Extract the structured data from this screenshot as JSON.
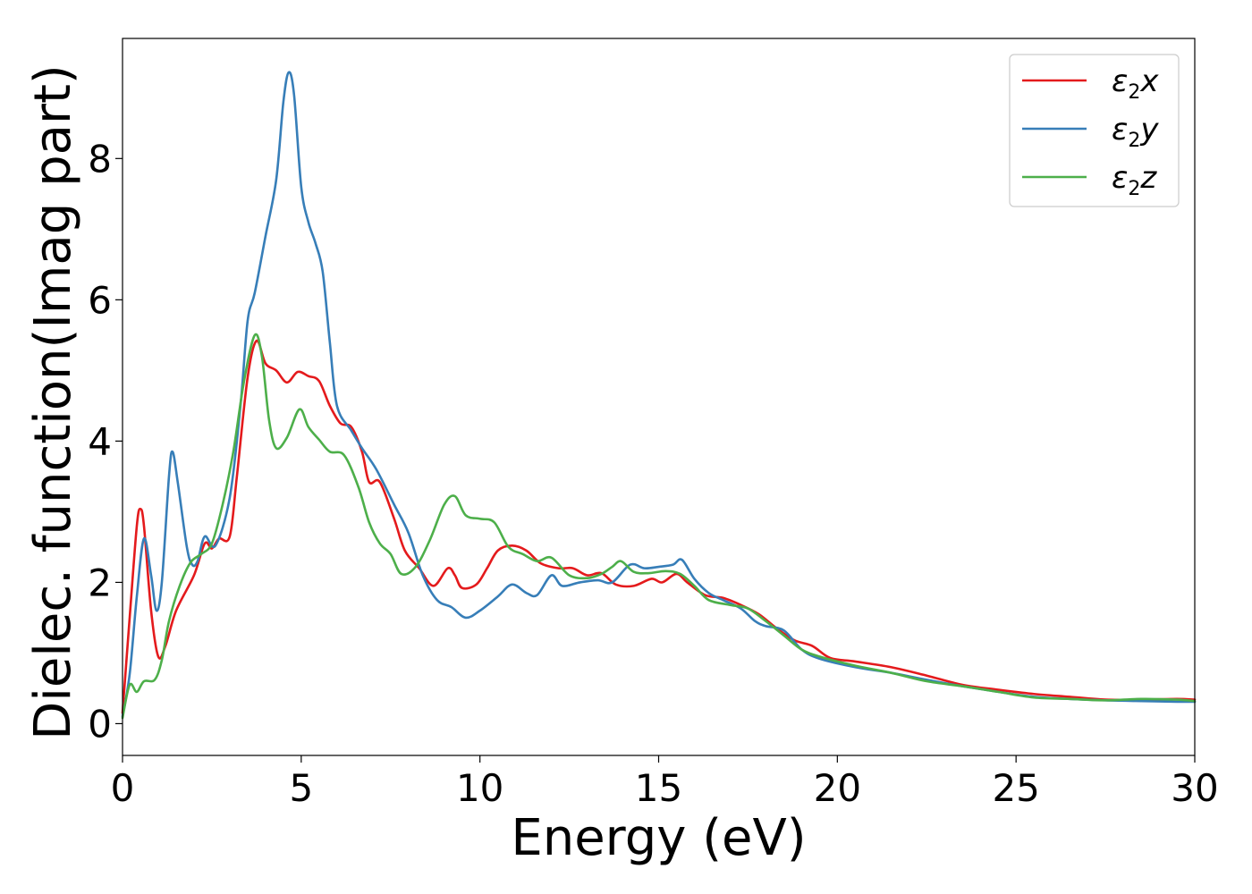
{
  "chart_data": {
    "type": "line",
    "xlabel": "Energy (eV)",
    "ylabel": "Dielec. function(Imag part)",
    "xlim": [
      0,
      30
    ],
    "ylim": [
      -0.45,
      9.7
    ],
    "x_ticks": [
      0,
      5,
      10,
      15,
      20,
      25,
      30
    ],
    "x_tick_labels": [
      "0",
      "5",
      "10",
      "15",
      "20",
      "25",
      "30"
    ],
    "y_ticks": [
      0,
      2,
      4,
      6,
      8
    ],
    "y_tick_labels": [
      "0",
      "2",
      "4",
      "6",
      "8"
    ],
    "grid": false,
    "legend_placement": "top-right",
    "series": [
      {
        "name": "ε2x",
        "legend": {
          "base": "ε",
          "sub": "2",
          "axis": "x"
        },
        "color": "#e41a1c",
        "points": [
          [
            0,
            0.15
          ],
          [
            0.2,
            1.5
          ],
          [
            0.4,
            2.8
          ],
          [
            0.5,
            3.04
          ],
          [
            0.6,
            2.8
          ],
          [
            0.8,
            1.6
          ],
          [
            1.0,
            0.95
          ],
          [
            1.2,
            1.1
          ],
          [
            1.5,
            1.6
          ],
          [
            2.0,
            2.1
          ],
          [
            2.3,
            2.55
          ],
          [
            2.5,
            2.48
          ],
          [
            2.7,
            2.62
          ],
          [
            3.0,
            2.65
          ],
          [
            3.2,
            3.5
          ],
          [
            3.5,
            4.9
          ],
          [
            3.75,
            5.42
          ],
          [
            4.0,
            5.1
          ],
          [
            4.3,
            5.0
          ],
          [
            4.6,
            4.83
          ],
          [
            4.9,
            4.98
          ],
          [
            5.2,
            4.92
          ],
          [
            5.5,
            4.85
          ],
          [
            5.8,
            4.5
          ],
          [
            6.1,
            4.25
          ],
          [
            6.4,
            4.2
          ],
          [
            6.7,
            3.85
          ],
          [
            6.9,
            3.42
          ],
          [
            7.2,
            3.42
          ],
          [
            7.6,
            2.9
          ],
          [
            7.9,
            2.45
          ],
          [
            8.3,
            2.2
          ],
          [
            8.7,
            1.95
          ],
          [
            9.1,
            2.2
          ],
          [
            9.3,
            2.1
          ],
          [
            9.5,
            1.92
          ],
          [
            9.9,
            1.97
          ],
          [
            10.2,
            2.2
          ],
          [
            10.5,
            2.45
          ],
          [
            10.9,
            2.52
          ],
          [
            11.3,
            2.45
          ],
          [
            11.7,
            2.27
          ],
          [
            12.2,
            2.2
          ],
          [
            12.6,
            2.2
          ],
          [
            13.0,
            2.1
          ],
          [
            13.4,
            2.13
          ],
          [
            13.8,
            1.97
          ],
          [
            14.3,
            1.95
          ],
          [
            14.8,
            2.05
          ],
          [
            15.1,
            2.0
          ],
          [
            15.5,
            2.12
          ],
          [
            15.8,
            2.0
          ],
          [
            16.3,
            1.82
          ],
          [
            16.8,
            1.78
          ],
          [
            17.3,
            1.68
          ],
          [
            17.8,
            1.55
          ],
          [
            18.3,
            1.35
          ],
          [
            18.8,
            1.18
          ],
          [
            19.3,
            1.1
          ],
          [
            19.8,
            0.93
          ],
          [
            20.5,
            0.88
          ],
          [
            21.5,
            0.8
          ],
          [
            22.5,
            0.68
          ],
          [
            23.5,
            0.55
          ],
          [
            24.5,
            0.48
          ],
          [
            25.5,
            0.42
          ],
          [
            26.5,
            0.38
          ],
          [
            27.5,
            0.34
          ],
          [
            28.5,
            0.34
          ],
          [
            29.5,
            0.35
          ],
          [
            30,
            0.34
          ]
        ]
      },
      {
        "name": "ε2y",
        "legend": {
          "base": "ε",
          "sub": "2",
          "axis": "y"
        },
        "color": "#377eb8",
        "points": [
          [
            0,
            0.1
          ],
          [
            0.2,
            0.7
          ],
          [
            0.4,
            1.8
          ],
          [
            0.6,
            2.62
          ],
          [
            0.8,
            2.1
          ],
          [
            0.95,
            1.6
          ],
          [
            1.1,
            2.0
          ],
          [
            1.3,
            3.5
          ],
          [
            1.4,
            3.85
          ],
          [
            1.55,
            3.4
          ],
          [
            1.8,
            2.5
          ],
          [
            1.95,
            2.25
          ],
          [
            2.1,
            2.3
          ],
          [
            2.3,
            2.65
          ],
          [
            2.6,
            2.52
          ],
          [
            3.0,
            3.2
          ],
          [
            3.3,
            4.5
          ],
          [
            3.5,
            5.7
          ],
          [
            3.7,
            6.1
          ],
          [
            4.0,
            6.9
          ],
          [
            4.3,
            7.7
          ],
          [
            4.5,
            8.8
          ],
          [
            4.65,
            9.22
          ],
          [
            4.8,
            8.9
          ],
          [
            5.0,
            7.6
          ],
          [
            5.2,
            7.1
          ],
          [
            5.4,
            6.8
          ],
          [
            5.6,
            6.4
          ],
          [
            5.8,
            5.4
          ],
          [
            6.0,
            4.5
          ],
          [
            6.4,
            4.15
          ],
          [
            6.7,
            3.9
          ],
          [
            7.1,
            3.6
          ],
          [
            7.6,
            3.1
          ],
          [
            8.0,
            2.7
          ],
          [
            8.4,
            2.1
          ],
          [
            8.8,
            1.75
          ],
          [
            9.2,
            1.65
          ],
          [
            9.6,
            1.5
          ],
          [
            10.0,
            1.6
          ],
          [
            10.5,
            1.8
          ],
          [
            10.9,
            1.97
          ],
          [
            11.3,
            1.85
          ],
          [
            11.6,
            1.82
          ],
          [
            12.0,
            2.1
          ],
          [
            12.3,
            1.95
          ],
          [
            12.8,
            2.0
          ],
          [
            13.3,
            2.03
          ],
          [
            13.7,
            2.0
          ],
          [
            14.2,
            2.25
          ],
          [
            14.6,
            2.2
          ],
          [
            15.0,
            2.22
          ],
          [
            15.4,
            2.25
          ],
          [
            15.65,
            2.32
          ],
          [
            16.0,
            2.05
          ],
          [
            16.4,
            1.85
          ],
          [
            16.8,
            1.75
          ],
          [
            17.3,
            1.63
          ],
          [
            17.7,
            1.45
          ],
          [
            18.0,
            1.38
          ],
          [
            18.5,
            1.32
          ],
          [
            19.0,
            1.05
          ],
          [
            19.5,
            0.92
          ],
          [
            20.5,
            0.8
          ],
          [
            21.5,
            0.72
          ],
          [
            22.5,
            0.62
          ],
          [
            23.5,
            0.53
          ],
          [
            24.5,
            0.45
          ],
          [
            25.5,
            0.38
          ],
          [
            26.5,
            0.35
          ],
          [
            27.5,
            0.33
          ],
          [
            28.5,
            0.32
          ],
          [
            29.5,
            0.31
          ],
          [
            30,
            0.31
          ]
        ]
      },
      {
        "name": "ε2z",
        "legend": {
          "base": "ε",
          "sub": "2",
          "axis": "z"
        },
        "color": "#4daf4a",
        "points": [
          [
            0,
            0.08
          ],
          [
            0.2,
            0.55
          ],
          [
            0.4,
            0.45
          ],
          [
            0.6,
            0.6
          ],
          [
            0.9,
            0.62
          ],
          [
            1.1,
            0.9
          ],
          [
            1.3,
            1.45
          ],
          [
            1.6,
            1.95
          ],
          [
            1.9,
            2.28
          ],
          [
            2.2,
            2.4
          ],
          [
            2.5,
            2.55
          ],
          [
            2.8,
            3.1
          ],
          [
            3.1,
            3.85
          ],
          [
            3.4,
            4.85
          ],
          [
            3.7,
            5.5
          ],
          [
            3.9,
            5.2
          ],
          [
            4.1,
            4.3
          ],
          [
            4.3,
            3.9
          ],
          [
            4.6,
            4.05
          ],
          [
            4.95,
            4.45
          ],
          [
            5.2,
            4.2
          ],
          [
            5.5,
            4.02
          ],
          [
            5.8,
            3.85
          ],
          [
            6.2,
            3.8
          ],
          [
            6.6,
            3.35
          ],
          [
            6.9,
            2.85
          ],
          [
            7.2,
            2.55
          ],
          [
            7.5,
            2.4
          ],
          [
            7.8,
            2.12
          ],
          [
            8.2,
            2.22
          ],
          [
            8.6,
            2.6
          ],
          [
            9.0,
            3.1
          ],
          [
            9.3,
            3.22
          ],
          [
            9.6,
            2.95
          ],
          [
            10.0,
            2.9
          ],
          [
            10.4,
            2.85
          ],
          [
            10.8,
            2.5
          ],
          [
            11.2,
            2.4
          ],
          [
            11.6,
            2.3
          ],
          [
            12.0,
            2.35
          ],
          [
            12.5,
            2.1
          ],
          [
            13.0,
            2.06
          ],
          [
            13.4,
            2.12
          ],
          [
            13.7,
            2.22
          ],
          [
            13.95,
            2.3
          ],
          [
            14.3,
            2.15
          ],
          [
            14.7,
            2.13
          ],
          [
            15.2,
            2.16
          ],
          [
            15.6,
            2.12
          ],
          [
            16.0,
            1.95
          ],
          [
            16.4,
            1.75
          ],
          [
            17.0,
            1.68
          ],
          [
            17.5,
            1.63
          ],
          [
            18.0,
            1.45
          ],
          [
            18.5,
            1.25
          ],
          [
            19.0,
            1.05
          ],
          [
            19.5,
            0.95
          ],
          [
            20.5,
            0.82
          ],
          [
            21.5,
            0.72
          ],
          [
            22.5,
            0.6
          ],
          [
            23.5,
            0.53
          ],
          [
            24.5,
            0.45
          ],
          [
            25.5,
            0.37
          ],
          [
            26.5,
            0.35
          ],
          [
            27.5,
            0.33
          ],
          [
            28.5,
            0.35
          ],
          [
            29.5,
            0.34
          ],
          [
            30,
            0.32
          ]
        ]
      }
    ]
  }
}
